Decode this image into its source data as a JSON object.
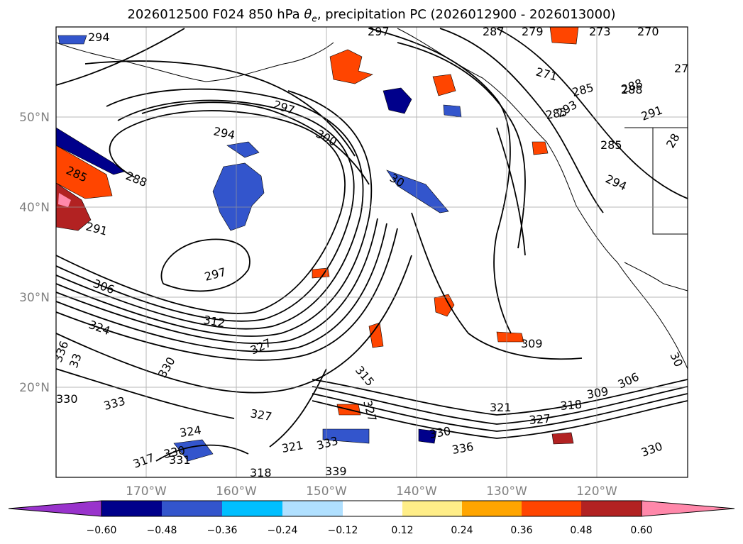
{
  "title_main": "2026012500 F024 850 hPa ",
  "title_theta": "θ",
  "title_theta_sub": "e",
  "title_rest": ", precipitation PC (2026012900 - 2026013000)",
  "lat_labels": [
    "50°N",
    "40°N",
    "30°N",
    "20°N"
  ],
  "lon_labels": [
    "170°W",
    "160°W",
    "150°W",
    "140°W",
    "130°W",
    "120°W"
  ],
  "colorbar": {
    "colors": [
      "#9933cc",
      "#00008b",
      "#3355cc",
      "#00bfff",
      "#b0e0ff",
      "#ffffff",
      "#ffee88",
      "#ffa500",
      "#ff4500",
      "#b22222",
      "#ff88aa"
    ],
    "tick_labels": [
      "−0.60",
      "−0.48",
      "−0.36",
      "−0.24",
      "−0.12",
      "0.12",
      "0.24",
      "0.36",
      "0.48",
      "0.60"
    ]
  },
  "contour_labels": [
    "294",
    "297",
    "287",
    "279",
    "273",
    "270",
    "27",
    "297",
    "300",
    "294",
    "288",
    "285",
    "291",
    "288",
    "306",
    "297",
    "312",
    "324",
    "327",
    "336",
    "33",
    "330",
    "333",
    "330",
    "327",
    "324",
    "330",
    "317",
    "331",
    "318",
    "321",
    "333",
    "339",
    "315",
    "327",
    "30",
    "330",
    "336",
    "309",
    "321",
    "327",
    "318",
    "309",
    "306",
    "330",
    "285",
    "288",
    "291",
    "285",
    "294",
    "28",
    "285",
    "293",
    "30",
    "271"
  ]
}
